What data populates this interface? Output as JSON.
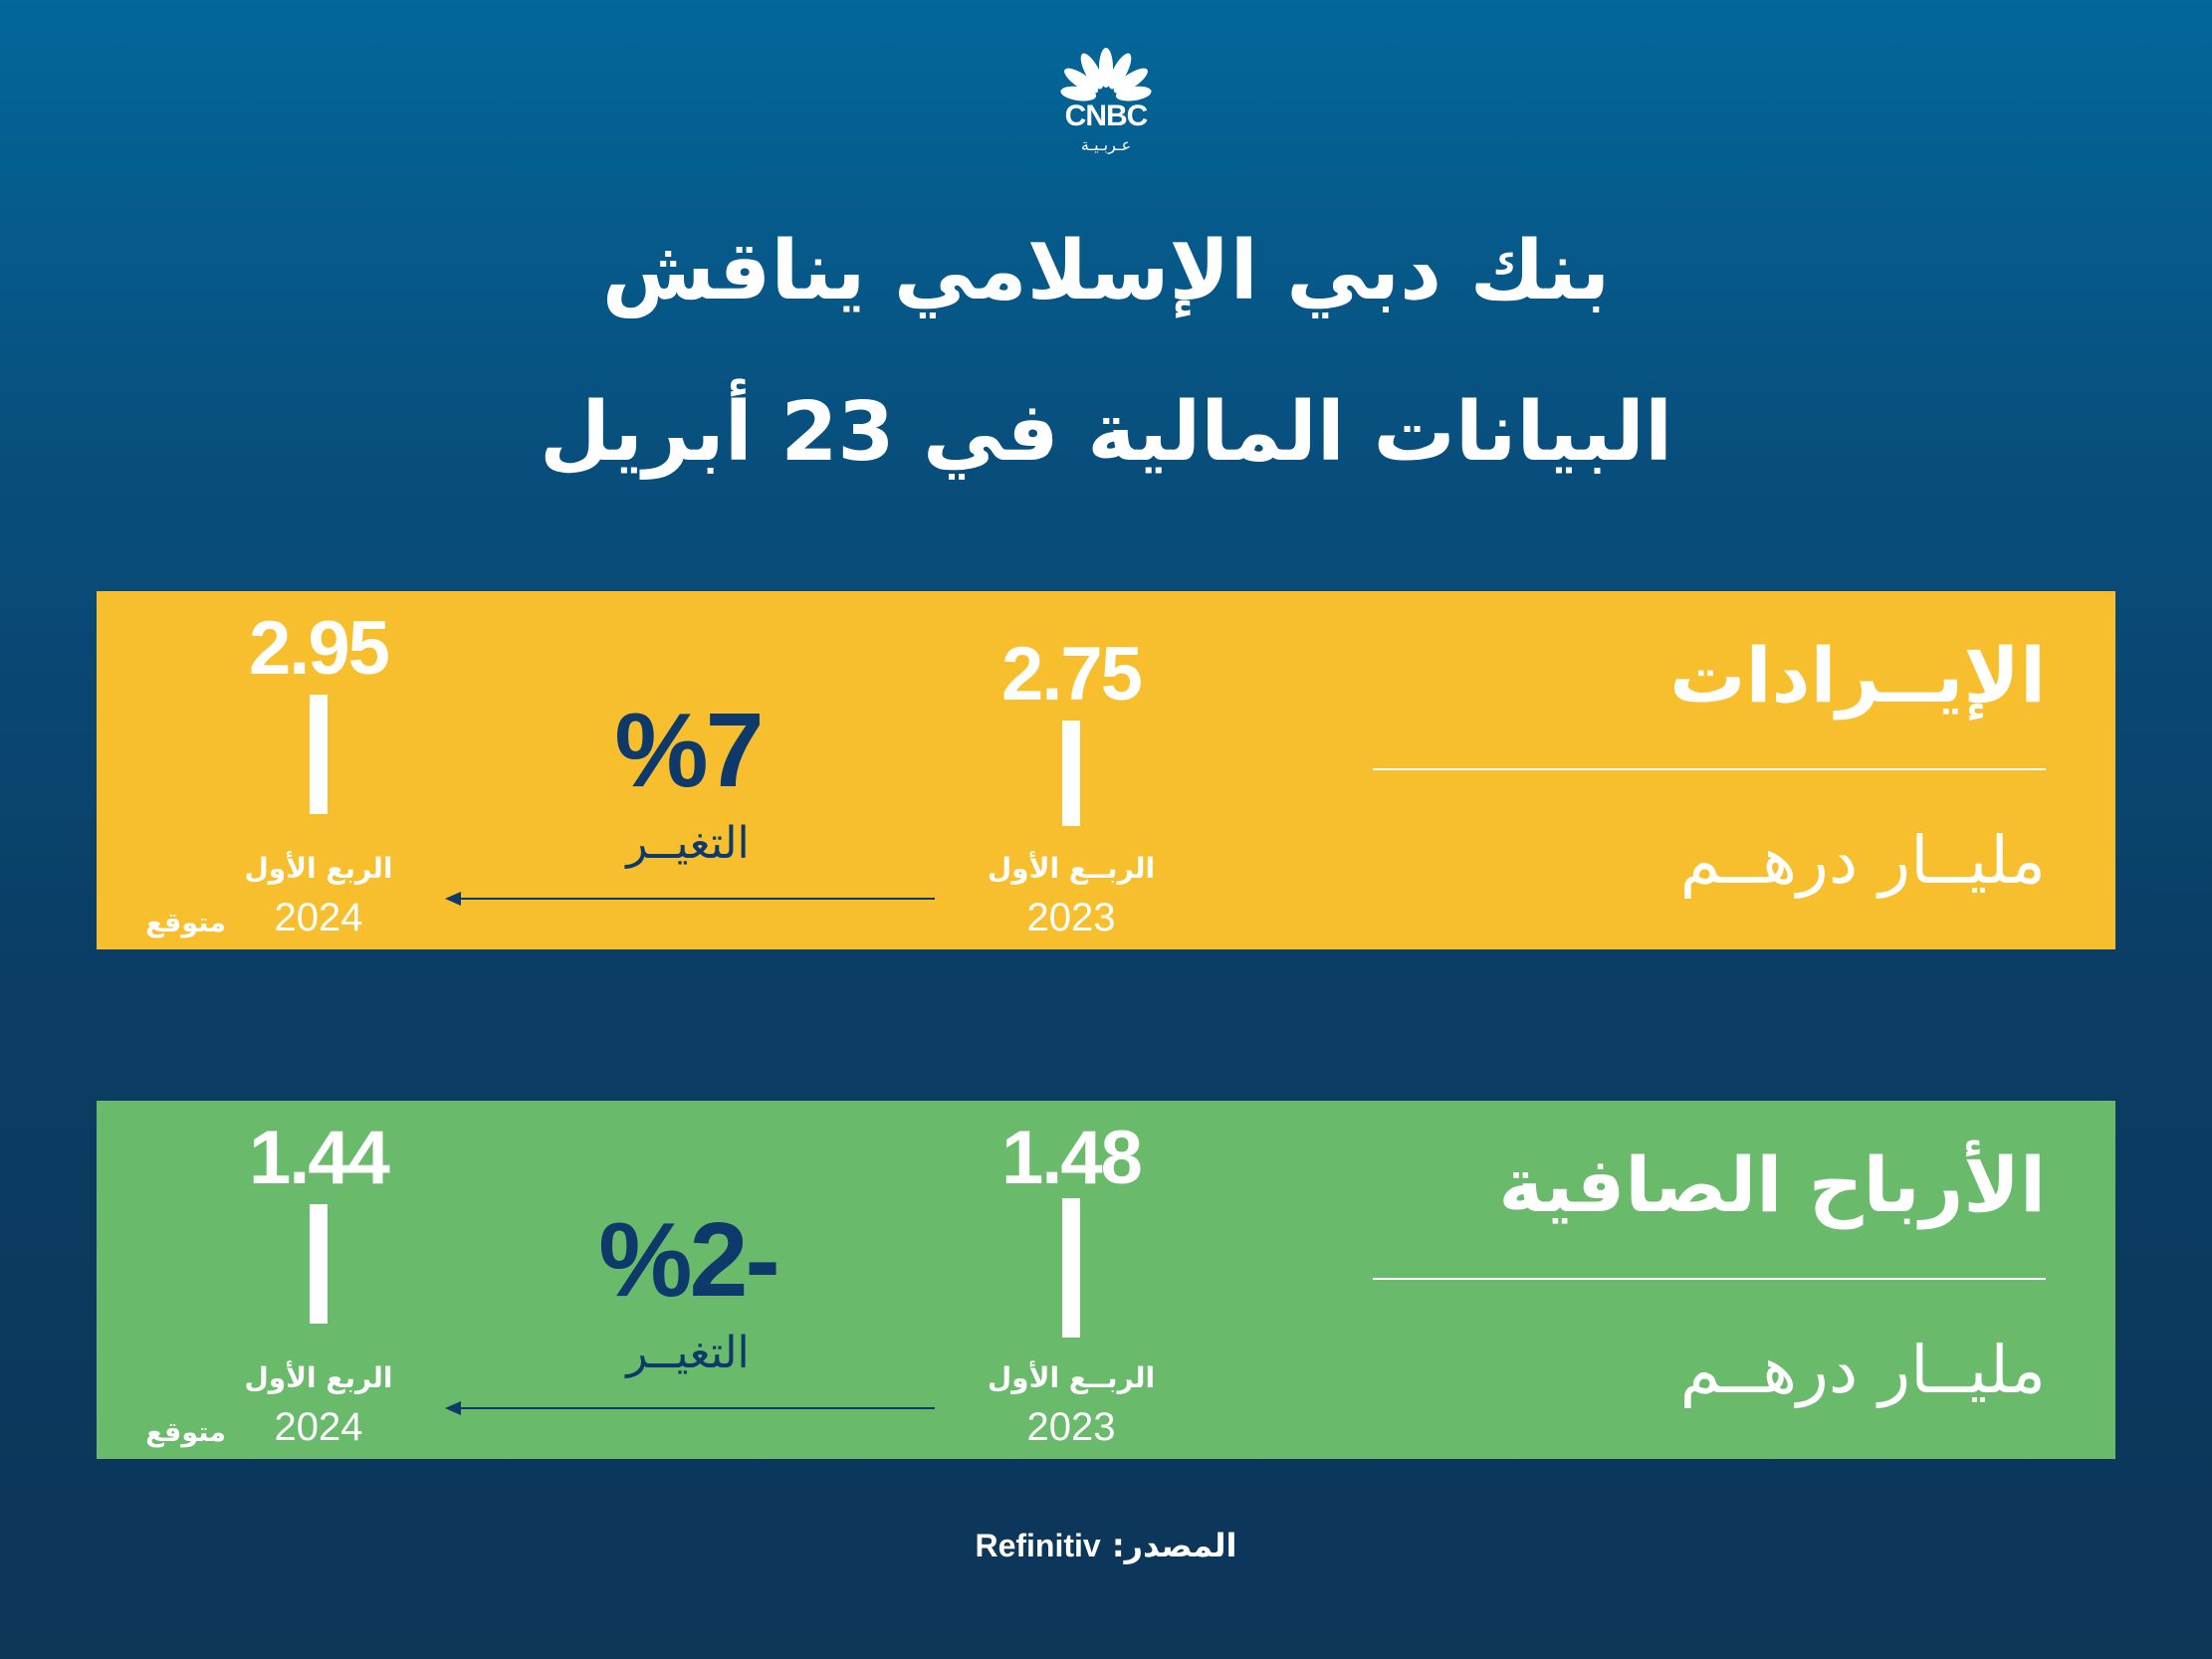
{
  "logo": {
    "brand": "CNBC",
    "sub": "عـربـيـة",
    "icon": "peacock-icon"
  },
  "headline": {
    "line1": "بنك دبي الإسلامي يناقش",
    "line2": "البيانات المالية في 23 أبريل"
  },
  "panels": [
    {
      "title": "الإيــرادات",
      "unit": "مليــار درهــم",
      "background": "#f7bf2e",
      "q1_2023": {
        "value": "2.75",
        "period": "الربــع الأول",
        "year": "2023"
      },
      "q1_2024": {
        "value": "2.95",
        "period": "الربع الأول",
        "year": "2024",
        "note": "متوقع"
      },
      "change": {
        "value": "%7",
        "label": "التغيــر"
      }
    },
    {
      "title": "الأرباح الصافية",
      "unit": "مليــار درهــم",
      "background": "#69ba6a",
      "q1_2023": {
        "value": "1.48",
        "period": "الربــع الأول",
        "year": "2023"
      },
      "q1_2024": {
        "value": "1.44",
        "period": "الربع الأول",
        "year": "2024",
        "note": "متوقع"
      },
      "change": {
        "value": "%2-",
        "label": "التغيــر"
      }
    }
  ],
  "source": {
    "label": "المصدر:",
    "value": "Refinitiv"
  },
  "colors": {
    "background_top": "#03679a",
    "background_bottom": "#0c3558",
    "change_text": "#0d3a6a",
    "arrow": "#0d3a6a"
  }
}
